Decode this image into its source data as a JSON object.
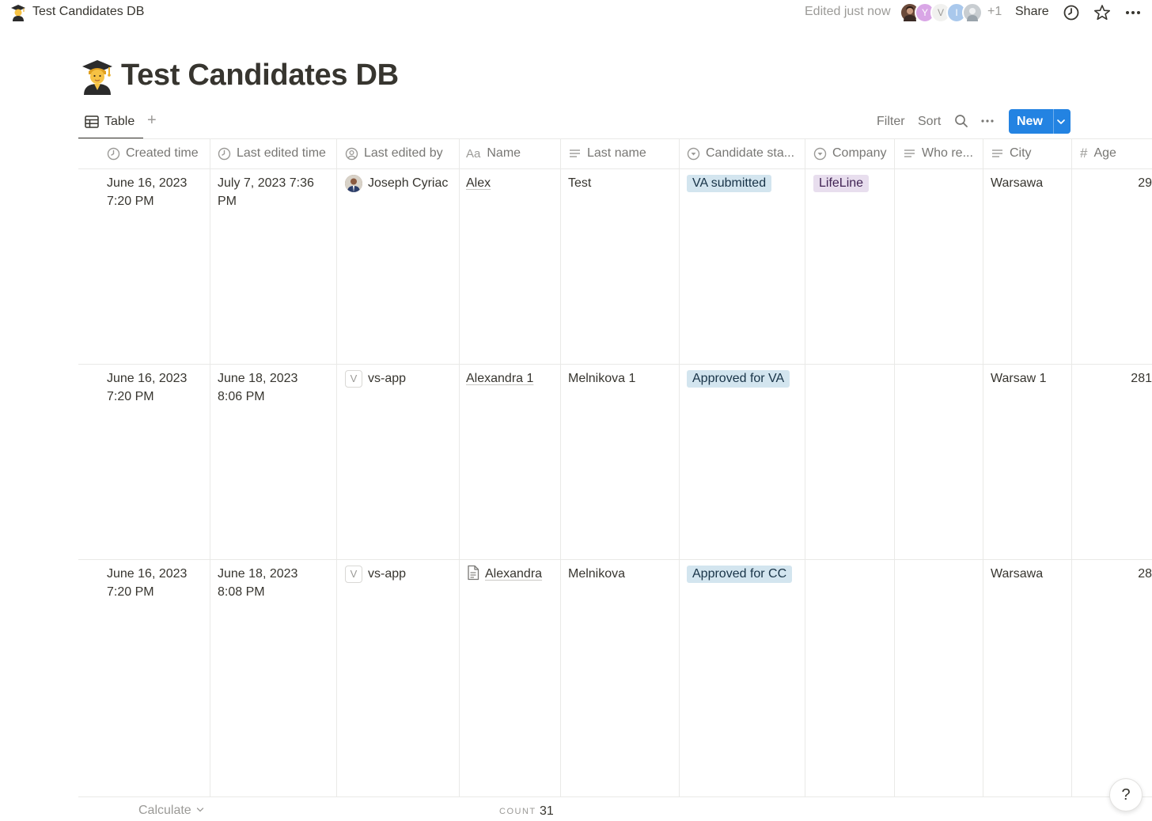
{
  "topbar": {
    "page_title": "Test Candidates DB",
    "edited_status": "Edited just now",
    "avatars": [
      "photo",
      "Y",
      "V",
      "I",
      "photo"
    ],
    "extra_collaborators": "+1",
    "share_label": "Share",
    "icons": [
      "graduate-emoji-icon",
      "clock-icon",
      "star-icon",
      "more-icon"
    ]
  },
  "page": {
    "title": "Test Candidates DB",
    "emoji": "student-graduate"
  },
  "view_bar": {
    "active_view": "Table",
    "add_view": "+",
    "filter_label": "Filter",
    "sort_label": "Sort",
    "new_label": "New"
  },
  "table": {
    "columns": [
      {
        "label": "Created time",
        "icon": "clock-icon"
      },
      {
        "label": "Last edited time",
        "icon": "clock-icon"
      },
      {
        "label": "Last edited by",
        "icon": "person-circle-icon"
      },
      {
        "label": "Name",
        "icon": "Aa"
      },
      {
        "label": "Last name",
        "icon": "text-lines-icon"
      },
      {
        "label": "Candidate sta...",
        "icon": "select-icon"
      },
      {
        "label": "Company",
        "icon": "select-icon"
      },
      {
        "label": "Who re...",
        "icon": "text-lines-icon"
      },
      {
        "label": "City",
        "icon": "text-lines-icon"
      },
      {
        "label": "Age",
        "icon": "#"
      }
    ],
    "rows": [
      {
        "created_time": [
          "June 16, 2023",
          "7:20 PM"
        ],
        "last_edited_time": [
          "July 7, 2023 7:36",
          "PM"
        ],
        "last_edited_by": "Joseph Cyriac",
        "editor_badge": "photo",
        "name": "Alex",
        "name_has_page_icon": false,
        "last_name": "Test",
        "candidate_status": "VA submitted",
        "company": "LifeLine",
        "who_referred": "",
        "city": "Warsawa",
        "age": "29"
      },
      {
        "created_time": [
          "June 16, 2023",
          "7:20 PM"
        ],
        "last_edited_time": [
          "June 18, 2023",
          "8:06 PM"
        ],
        "last_edited_by": "vs-app",
        "editor_badge": "V",
        "name": "Alexandra 1",
        "name_has_page_icon": false,
        "last_name": "Melnikova 1",
        "candidate_status": "Approved for VA",
        "company": "",
        "who_referred": "",
        "city": "Warsaw 1",
        "age": "281"
      },
      {
        "created_time": [
          "June 16, 2023",
          "7:20 PM"
        ],
        "last_edited_time": [
          "June 18, 2023",
          "8:08 PM"
        ],
        "last_edited_by": "vs-app",
        "editor_badge": "V",
        "name": "Alexandra",
        "name_has_page_icon": true,
        "last_name": "Melnikova",
        "candidate_status": "Approved for CC",
        "company": "",
        "who_referred": "",
        "city": "Warsawa",
        "age": "28"
      }
    ]
  },
  "footer": {
    "calculate_label": "Calculate",
    "count_label": "COUNT",
    "count_value": "31",
    "help_label": "?"
  },
  "colors": {
    "accent_blue": "#2383e2",
    "tag_blue_bg": "#d3e5ef",
    "tag_purple_bg": "#e8deee",
    "text_primary": "#37352f",
    "text_muted": "#787774"
  }
}
